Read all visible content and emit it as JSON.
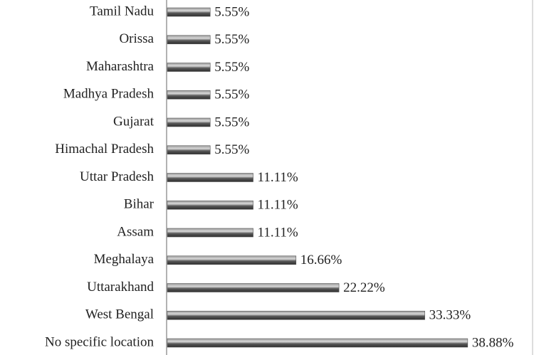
{
  "chart_data": {
    "type": "bar",
    "orientation": "horizontal",
    "categories": [
      "Tamil Nadu",
      "Orissa",
      "Maharashtra",
      "Madhya Pradesh",
      "Gujarat",
      "Himachal Pradesh",
      "Uttar Pradesh",
      "Bihar",
      "Assam",
      "Meghalaya",
      "Uttarakhand",
      "West Bengal",
      "No specific location"
    ],
    "values": [
      5.55,
      5.55,
      5.55,
      5.55,
      5.55,
      5.55,
      11.11,
      11.11,
      11.11,
      16.66,
      22.22,
      33.33,
      38.88
    ],
    "value_labels": [
      "5.55%",
      "5.55%",
      "5.55%",
      "5.55%",
      "5.55%",
      "5.55%",
      "11.11%",
      "11.11%",
      "11.11%",
      "16.66%",
      "22.22%",
      "33.33%",
      "38.88%"
    ],
    "color": "#555555"
  }
}
